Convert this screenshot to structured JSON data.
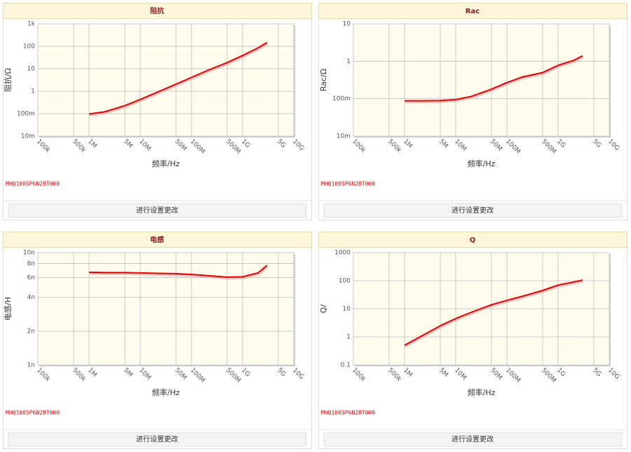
{
  "chart_data": [
    {
      "type": "line",
      "title": "阻抗",
      "xlabel": "频率/Hz",
      "ylabel": "阻抗/Ω",
      "xscale": "log",
      "yscale": "log",
      "grid": true,
      "part_number": "MHQ1005P6N2BT000",
      "button": "进行设置更改",
      "xlim": [
        100000,
        10000000000
      ],
      "xticks": [
        {
          "value": 100000,
          "label": "100k"
        },
        {
          "value": 500000,
          "label": "500k"
        },
        {
          "value": 1000000,
          "label": "1M"
        },
        {
          "value": 5000000,
          "label": "5M"
        },
        {
          "value": 10000000,
          "label": "10M"
        },
        {
          "value": 50000000,
          "label": "50M"
        },
        {
          "value": 100000000,
          "label": "100M"
        },
        {
          "value": 500000000,
          "label": "500M"
        },
        {
          "value": 1000000000,
          "label": "1G"
        },
        {
          "value": 5000000000,
          "label": "5G"
        },
        {
          "value": 10000000000,
          "label": "10G"
        }
      ],
      "ylim": [
        0.01,
        1000
      ],
      "yticks": [
        {
          "value": 0.01,
          "label": "10m"
        },
        {
          "value": 0.1,
          "label": "100m"
        },
        1,
        10,
        100,
        {
          "value": 1000,
          "label": "1k"
        }
      ],
      "series": [
        {
          "color": "#e00000",
          "x": [
            1000000,
            2000000,
            5000000,
            10000000,
            20000000,
            50000000,
            100000000,
            200000000,
            500000000,
            1000000000,
            2000000000,
            3000000000
          ],
          "values": [
            0.097,
            0.121,
            0.227,
            0.43,
            0.84,
            2.07,
            4.1,
            8.2,
            18.9,
            39,
            85,
            147
          ]
        }
      ]
    },
    {
      "type": "line",
      "title": "Rac",
      "xlabel": "频率/Hz",
      "ylabel": "Rac/Ω",
      "xscale": "log",
      "yscale": "log",
      "grid": true,
      "part_number": "MHQ1005P6N2BT000",
      "button": "进行设置更改",
      "xlim": [
        100000,
        10000000000
      ],
      "xticks": [
        {
          "value": 100000,
          "label": "100k"
        },
        {
          "value": 500000,
          "label": "500k"
        },
        {
          "value": 1000000,
          "label": "1M"
        },
        {
          "value": 5000000,
          "label": "5M"
        },
        {
          "value": 10000000,
          "label": "10M"
        },
        {
          "value": 50000000,
          "label": "50M"
        },
        {
          "value": 100000000,
          "label": "100M"
        },
        {
          "value": 500000000,
          "label": "500M"
        },
        {
          "value": 1000000000,
          "label": "1G"
        },
        {
          "value": 5000000000,
          "label": "5G"
        },
        {
          "value": 10000000000,
          "label": "10G"
        }
      ],
      "ylim": [
        0.01,
        10
      ],
      "yticks": [
        {
          "value": 0.01,
          "label": "10m"
        },
        {
          "value": 0.1,
          "label": "100m"
        },
        1,
        10
      ],
      "series": [
        {
          "color": "#e00000",
          "x": [
            1000000,
            2000000,
            5000000,
            10000000,
            20000000,
            50000000,
            100000000,
            200000000,
            500000000,
            1000000000,
            2000000000,
            3000000000
          ],
          "values": [
            0.088,
            0.088,
            0.089,
            0.095,
            0.115,
            0.18,
            0.27,
            0.38,
            0.5,
            0.78,
            1.05,
            1.4
          ]
        }
      ]
    },
    {
      "type": "line",
      "title": "电感",
      "xlabel": "频率/Hz",
      "ylabel": "电感/H",
      "xscale": "log",
      "yscale": "log",
      "grid": true,
      "part_number": "MHQ1005P6N2BT000",
      "button": "进行设置更改",
      "xlim": [
        100000,
        10000000000
      ],
      "xticks": [
        {
          "value": 100000,
          "label": "100k"
        },
        {
          "value": 500000,
          "label": "500k"
        },
        {
          "value": 1000000,
          "label": "1M"
        },
        {
          "value": 5000000,
          "label": "5M"
        },
        {
          "value": 10000000,
          "label": "10M"
        },
        {
          "value": 50000000,
          "label": "50M"
        },
        {
          "value": 100000000,
          "label": "100M"
        },
        {
          "value": 500000000,
          "label": "500M"
        },
        {
          "value": 1000000000,
          "label": "1G"
        },
        {
          "value": 5000000000,
          "label": "5G"
        },
        {
          "value": 10000000000,
          "label": "10G"
        }
      ],
      "ylim": [
        1e-09,
        1e-08
      ],
      "yticks": [
        {
          "value": 1e-09,
          "label": "1n"
        },
        {
          "value": 2e-09,
          "label": "2n"
        },
        {
          "value": 4e-09,
          "label": "4n"
        },
        {
          "value": 6e-09,
          "label": "6n"
        },
        {
          "value": 8e-09,
          "label": "8n"
        },
        {
          "value": 1e-08,
          "label": "10n"
        }
      ],
      "series": [
        {
          "color": "#e00000",
          "x": [
            1000000,
            2000000,
            5000000,
            10000000,
            20000000,
            50000000,
            100000000,
            200000000,
            500000000,
            1000000000,
            2000000000,
            3000000000
          ],
          "values": [
            6.7e-09,
            6.65e-09,
            6.65e-09,
            6.6e-09,
            6.55e-09,
            6.5e-09,
            6.4e-09,
            6.25e-09,
            6.05e-09,
            6.1e-09,
            6.6e-09,
            7.7e-09
          ]
        }
      ]
    },
    {
      "type": "line",
      "title": "Q",
      "xlabel": "频率/Hz",
      "ylabel": "Q/",
      "xscale": "log",
      "yscale": "log",
      "grid": true,
      "part_number": "MHQ1005P6N2BT000",
      "button": "进行设置更改",
      "xlim": [
        100000,
        10000000000
      ],
      "xticks": [
        {
          "value": 100000,
          "label": "100k"
        },
        {
          "value": 500000,
          "label": "500k"
        },
        {
          "value": 1000000,
          "label": "1M"
        },
        {
          "value": 5000000,
          "label": "5M"
        },
        {
          "value": 10000000,
          "label": "10M"
        },
        {
          "value": 50000000,
          "label": "50M"
        },
        {
          "value": 100000000,
          "label": "100M"
        },
        {
          "value": 500000000,
          "label": "500M"
        },
        {
          "value": 1000000000,
          "label": "1G"
        },
        {
          "value": 5000000000,
          "label": "5G"
        },
        {
          "value": 10000000000,
          "label": "10G"
        }
      ],
      "ylim": [
        0.1,
        1000
      ],
      "yticks": [
        0.1,
        1,
        10,
        100,
        1000
      ],
      "series": [
        {
          "color": "#e00000",
          "x": [
            1000000,
            2000000,
            5000000,
            10000000,
            20000000,
            50000000,
            100000000,
            200000000,
            500000000,
            1000000000,
            2000000000,
            3000000000
          ],
          "values": [
            0.5,
            1,
            2.5,
            4.5,
            7.5,
            14,
            20,
            28,
            45,
            70,
            90,
            105
          ]
        }
      ]
    }
  ]
}
